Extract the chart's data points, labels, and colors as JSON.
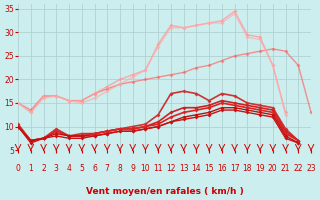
{
  "x": [
    0,
    1,
    2,
    3,
    4,
    5,
    6,
    7,
    8,
    9,
    10,
    11,
    12,
    13,
    14,
    15,
    16,
    17,
    18,
    19,
    20,
    21,
    22,
    23
  ],
  "series": [
    {
      "color": "#ff6666",
      "alpha": 0.7,
      "lw": 1.0,
      "y": [
        15.0,
        13.5,
        16.5,
        16.5,
        15.5,
        15.5,
        17.0,
        18.0,
        19.0,
        19.5,
        20.0,
        20.5,
        21.0,
        21.5,
        22.5,
        23.0,
        24.0,
        25.0,
        25.5,
        26.0,
        26.5,
        26.0,
        23.0,
        13.0
      ]
    },
    {
      "color": "#ff9999",
      "alpha": 0.8,
      "lw": 1.0,
      "y": [
        15.0,
        13.0,
        16.5,
        16.5,
        15.5,
        15.5,
        17.0,
        18.5,
        20.0,
        21.0,
        22.0,
        27.5,
        31.5,
        31.0,
        31.5,
        32.0,
        32.5,
        34.5,
        29.5,
        29.0,
        23.0,
        13.0,
        null,
        null
      ]
    },
    {
      "color": "#ffaaaa",
      "alpha": 0.7,
      "lw": 1.0,
      "y": [
        15.0,
        13.0,
        16.0,
        16.5,
        15.5,
        15.0,
        16.0,
        17.5,
        19.0,
        20.5,
        22.0,
        27.0,
        31.0,
        31.0,
        31.5,
        32.0,
        32.0,
        34.0,
        29.0,
        28.5,
        23.0,
        12.5,
        null,
        null
      ]
    },
    {
      "color": "#cc3333",
      "alpha": 1.0,
      "lw": 1.2,
      "y": [
        10.5,
        7.0,
        7.5,
        9.5,
        8.0,
        8.5,
        8.5,
        9.0,
        9.5,
        10.0,
        10.5,
        12.5,
        17.0,
        17.5,
        17.0,
        15.5,
        17.0,
        16.5,
        15.0,
        14.5,
        14.0,
        9.5,
        7.0,
        null
      ]
    },
    {
      "color": "#cc2222",
      "alpha": 1.0,
      "lw": 1.2,
      "y": [
        10.0,
        7.0,
        7.5,
        9.0,
        8.0,
        8.0,
        8.5,
        9.0,
        9.5,
        9.5,
        10.0,
        11.0,
        13.0,
        14.0,
        14.0,
        14.5,
        15.5,
        15.0,
        14.5,
        14.0,
        13.5,
        9.0,
        7.0,
        null
      ]
    },
    {
      "color": "#dd2222",
      "alpha": 1.0,
      "lw": 1.2,
      "y": [
        10.0,
        7.0,
        7.5,
        9.0,
        8.0,
        8.0,
        8.5,
        9.0,
        9.5,
        9.5,
        10.0,
        10.5,
        12.0,
        13.0,
        13.5,
        14.0,
        15.0,
        14.5,
        14.0,
        13.5,
        13.0,
        8.5,
        7.0,
        null
      ]
    },
    {
      "color": "#bb1111",
      "alpha": 1.0,
      "lw": 1.0,
      "y": [
        10.0,
        7.0,
        7.5,
        8.5,
        8.0,
        8.0,
        8.0,
        8.5,
        9.0,
        9.0,
        9.5,
        10.0,
        11.0,
        12.0,
        12.5,
        13.0,
        14.0,
        14.0,
        13.5,
        13.0,
        12.5,
        8.0,
        6.5,
        null
      ]
    },
    {
      "color": "#cc1111",
      "alpha": 1.0,
      "lw": 1.0,
      "y": [
        10.0,
        6.5,
        7.5,
        8.0,
        7.5,
        7.5,
        8.0,
        8.5,
        9.0,
        9.0,
        9.5,
        10.0,
        11.0,
        11.5,
        12.0,
        12.5,
        13.5,
        13.5,
        13.0,
        12.5,
        12.0,
        7.5,
        6.5,
        null
      ]
    }
  ],
  "markers": [
    {
      "series_idx": 0,
      "marker": "D",
      "ms": 2.5
    },
    {
      "series_idx": 1,
      "marker": "D",
      "ms": 2.5
    },
    {
      "series_idx": 2,
      "marker": "D",
      "ms": 2.5
    },
    {
      "series_idx": 3,
      "marker": "D",
      "ms": 2.5
    },
    {
      "series_idx": 4,
      "marker": "D",
      "ms": 2.5
    },
    {
      "series_idx": 5,
      "marker": "D",
      "ms": 2.5
    },
    {
      "series_idx": 6,
      "marker": "D",
      "ms": 2.5
    },
    {
      "series_idx": 7,
      "marker": "D",
      "ms": 2.5
    }
  ],
  "xlabel": "Vent moyen/en rafales ( km/h )",
  "ylabel": "",
  "xlim": [
    0,
    23
  ],
  "ylim": [
    5,
    36
  ],
  "yticks": [
    5,
    10,
    15,
    20,
    25,
    30,
    35
  ],
  "xticks": [
    0,
    1,
    2,
    3,
    4,
    5,
    6,
    7,
    8,
    9,
    10,
    11,
    12,
    13,
    14,
    15,
    16,
    17,
    18,
    19,
    20,
    21,
    22,
    23
  ],
  "bg_color": "#cceeee",
  "grid_color": "#aacccc",
  "tick_color": "#cc0000",
  "label_color": "#cc0000",
  "xlabel_color": "#cc0000",
  "arrow_color": "#cc0000"
}
